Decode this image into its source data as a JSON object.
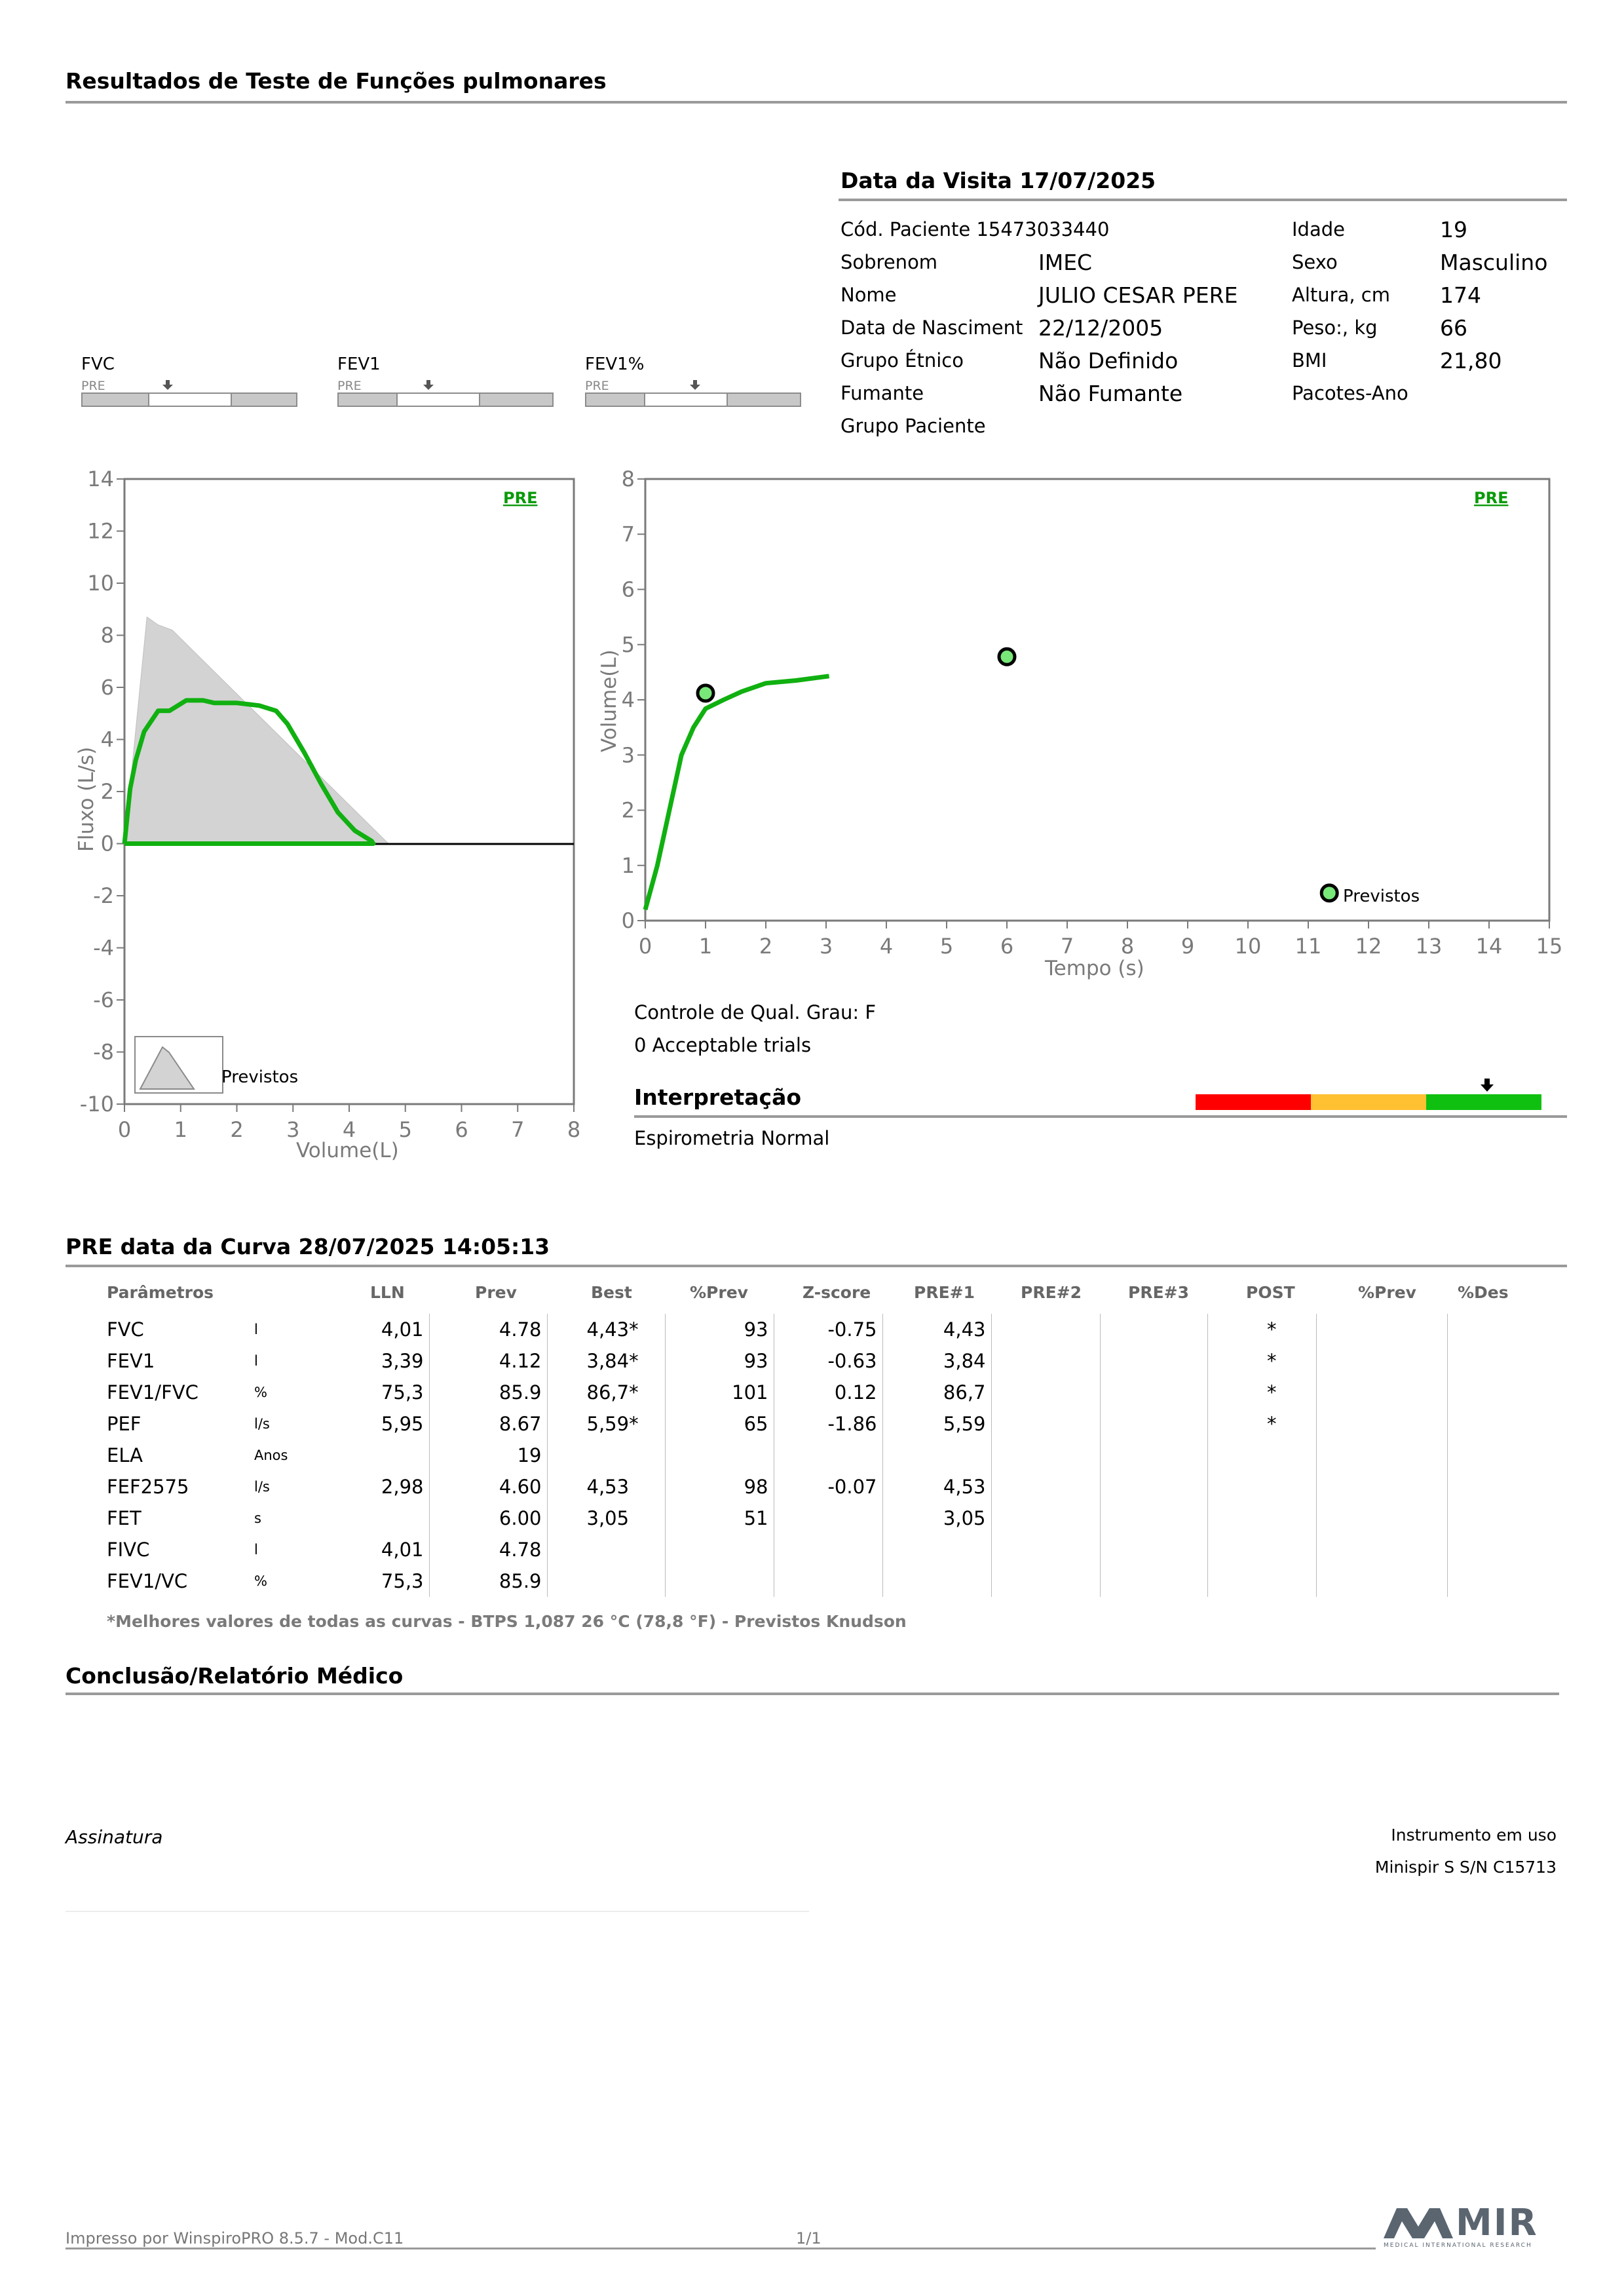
{
  "report_title": "Resultados de Teste de Funções pulmonares",
  "visit": {
    "label": "Data da Visita 17/07/2025"
  },
  "patient": {
    "rows": [
      {
        "label": "Cód. Paciente 15473033440",
        "value": ""
      },
      {
        "label": "Sobrenom",
        "value": "IMEC"
      },
      {
        "label": "Nome",
        "value": "JULIO CESAR PERE"
      },
      {
        "label": "Data de Nasciment",
        "value": "22/12/2005"
      },
      {
        "label": "Grupo Étnico",
        "value": "Não Definido"
      },
      {
        "label": "Fumante",
        "value": "Não Fumante"
      },
      {
        "label": "Grupo Paciente",
        "value": ""
      }
    ],
    "right_rows": [
      {
        "label": "Idade",
        "value": "19"
      },
      {
        "label": "Sexo",
        "value": "Masculino"
      },
      {
        "label": "Altura, cm",
        "value": "174"
      },
      {
        "label": "Peso:, kg",
        "value": "66"
      },
      {
        "label": "BMI",
        "value": "21,80"
      },
      {
        "label": "Pacotes-Ano",
        "value": ""
      }
    ]
  },
  "gauges": [
    {
      "label": "FVC",
      "sub": "PRE"
    },
    {
      "label": "FEV1",
      "sub": "PRE"
    },
    {
      "label": "FEV1%",
      "sub": "PRE"
    }
  ],
  "flow_volume_chart": {
    "badge": "PRE",
    "ylabel": "Fluxo (L/s)",
    "xlabel": "Volume(L)",
    "legend": "Previstos",
    "x_ticks": [
      "0",
      "1",
      "2",
      "3",
      "4",
      "5",
      "6",
      "7",
      "8"
    ],
    "y_ticks": [
      "14",
      "12",
      "10",
      "8",
      "6",
      "4",
      "2",
      "0",
      "-2",
      "-4",
      "-6",
      "-8",
      "-10"
    ]
  },
  "volume_time_chart": {
    "badge": "PRE",
    "ylabel": "Volume(L)",
    "xlabel": "Tempo (s)",
    "legend": "Previstos",
    "x_ticks": [
      "0",
      "1",
      "2",
      "3",
      "4",
      "5",
      "6",
      "7",
      "8",
      "9",
      "10",
      "11",
      "12",
      "13",
      "14",
      "15"
    ],
    "y_ticks": [
      "8",
      "7",
      "6",
      "5",
      "4",
      "3",
      "2",
      "1",
      "0"
    ]
  },
  "chart_data": [
    {
      "type": "area",
      "x_range": [
        0,
        8
      ],
      "y_range": [
        -10,
        14
      ],
      "series": [
        {
          "values": [
            [
              0,
              0
            ],
            [
              0.4,
              8.7
            ],
            [
              0.6,
              8.4
            ],
            [
              0.85,
              8.2
            ],
            [
              4.7,
              0
            ],
            [
              0,
              0
            ]
          ]
        },
        {
          "values": [
            [
              0,
              0
            ],
            [
              0.1,
              2.1
            ],
            [
              0.2,
              3.2
            ],
            [
              0.35,
              4.3
            ],
            [
              0.6,
              5.1
            ],
            [
              0.8,
              5.1
            ],
            [
              1.1,
              5.5
            ],
            [
              1.4,
              5.5
            ],
            [
              1.6,
              5.4
            ],
            [
              2.0,
              5.4
            ],
            [
              2.4,
              5.3
            ],
            [
              2.7,
              5.1
            ],
            [
              2.9,
              4.6
            ],
            [
              3.2,
              3.5
            ],
            [
              3.5,
              2.3
            ],
            [
              3.8,
              1.2
            ],
            [
              4.1,
              0.5
            ],
            [
              4.4,
              0.1
            ],
            [
              4.43,
              0
            ],
            [
              0,
              0
            ]
          ]
        }
      ]
    },
    {
      "type": "line",
      "x_range": [
        0,
        15
      ],
      "y_range": [
        0,
        8
      ],
      "series": [
        {
          "values": [
            [
              0,
              0.2
            ],
            [
              0.2,
              1.0
            ],
            [
              0.4,
              2.0
            ],
            [
              0.6,
              3.0
            ],
            [
              0.8,
              3.5
            ],
            [
              1.0,
              3.84
            ],
            [
              1.3,
              4.0
            ],
            [
              1.6,
              4.15
            ],
            [
              2.0,
              4.3
            ],
            [
              2.5,
              4.35
            ],
            [
              3.05,
              4.43
            ]
          ]
        }
      ],
      "points": [
        [
          1.0,
          4.12
        ],
        [
          6.0,
          4.78
        ],
        [
          11.35,
          0.5
        ]
      ]
    }
  ],
  "quality": {
    "grade": "Controle de Qual. Grau: F",
    "trials": "0 Acceptable trials"
  },
  "interpretation": {
    "title": "Interpretação",
    "text": "Espirometria Normal",
    "colors": [
      "#ff0000",
      "#ffc032",
      "#10c010"
    ]
  },
  "results": {
    "title": "PRE data da Curva 28/07/2025   14:05:13",
    "headers": [
      "Parâmetros",
      "LLN",
      "Prev",
      "Best",
      "%Prev",
      "Z-score",
      "PRE#1",
      "PRE#2",
      "PRE#3",
      "POST",
      "%Prev",
      "%Des"
    ],
    "rows": [
      {
        "param": "FVC",
        "unit": "l",
        "lln": "4,01",
        "prev": "4.78",
        "best": "4,43*",
        "pprev": "93",
        "z": "-0.75",
        "pre1": "4,43",
        "pre2": "",
        "pre3": "",
        "post": "*",
        "pprev2": "",
        "des": ""
      },
      {
        "param": "FEV1",
        "unit": "l",
        "lln": "3,39",
        "prev": "4.12",
        "best": "3,84*",
        "pprev": "93",
        "z": "-0.63",
        "pre1": "3,84",
        "pre2": "",
        "pre3": "",
        "post": "*",
        "pprev2": "",
        "des": ""
      },
      {
        "param": "FEV1/FVC",
        "unit": "%",
        "lln": "75,3",
        "prev": "85.9",
        "best": "86,7*",
        "pprev": "101",
        "z": "0.12",
        "pre1": "86,7",
        "pre2": "",
        "pre3": "",
        "post": "*",
        "pprev2": "",
        "des": ""
      },
      {
        "param": "PEF",
        "unit": "l/s",
        "lln": "5,95",
        "prev": "8.67",
        "best": "5,59*",
        "pprev": "65",
        "z": "-1.86",
        "pre1": "5,59",
        "pre2": "",
        "pre3": "",
        "post": "*",
        "pprev2": "",
        "des": ""
      },
      {
        "param": "ELA",
        "unit": "Anos",
        "lln": "",
        "prev": "19",
        "best": "",
        "pprev": "",
        "z": "",
        "pre1": "",
        "pre2": "",
        "pre3": "",
        "post": "",
        "pprev2": "",
        "des": ""
      },
      {
        "param": "FEF2575",
        "unit": "l/s",
        "lln": "2,98",
        "prev": "4.60",
        "best": "4,53",
        "pprev": "98",
        "z": "-0.07",
        "pre1": "4,53",
        "pre2": "",
        "pre3": "",
        "post": "",
        "pprev2": "",
        "des": ""
      },
      {
        "param": "FET",
        "unit": "s",
        "lln": "",
        "prev": "6.00",
        "best": "3,05",
        "pprev": "51",
        "z": "",
        "pre1": "3,05",
        "pre2": "",
        "pre3": "",
        "post": "",
        "pprev2": "",
        "des": ""
      },
      {
        "param": "FIVC",
        "unit": "l",
        "lln": "4,01",
        "prev": "4.78",
        "best": "",
        "pprev": "",
        "z": "",
        "pre1": "",
        "pre2": "",
        "pre3": "",
        "post": "",
        "pprev2": "",
        "des": ""
      },
      {
        "param": "FEV1/VC",
        "unit": "%",
        "lln": "75,3",
        "prev": "85.9",
        "best": "",
        "pprev": "",
        "z": "",
        "pre1": "",
        "pre2": "",
        "pre3": "",
        "post": "",
        "pprev2": "",
        "des": ""
      }
    ],
    "note": "*Melhores valores de todas as curvas - BTPS  1,087  26 °C  (78,8 °F) - Previstos Knudson"
  },
  "conclusion": {
    "title": "Conclusão/Relatório Médico"
  },
  "signature": {
    "label": "Assinatura"
  },
  "instrument": {
    "label": "Instrumento em uso",
    "value": "Minispir S S/N C15713"
  },
  "footer": {
    "printed": "Impresso por WinspiroPRO  8.5.7 - Mod.C11",
    "page": "1/1",
    "logo_text": "MIR",
    "logo_sub": "MEDICAL INTERNATIONAL RESEARCH",
    "logo_color": "#5a6570"
  }
}
